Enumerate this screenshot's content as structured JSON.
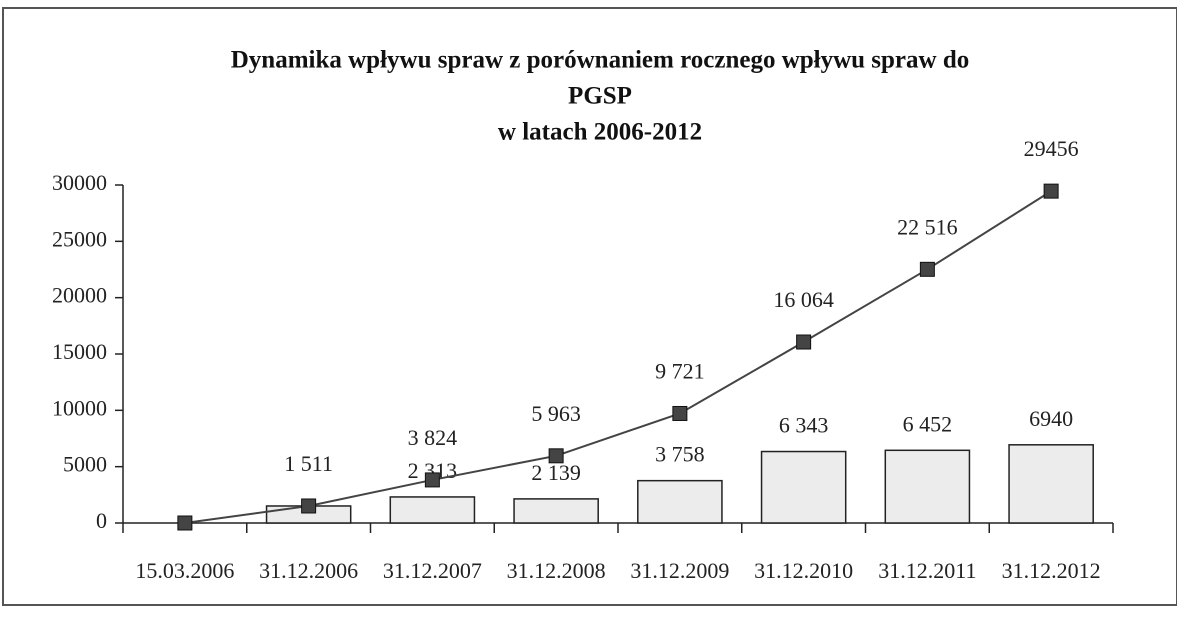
{
  "chart_data": {
    "type": "bar-line",
    "title": [
      "Dynamika wpływu spraw z porównaniem rocznego wpływu spraw do",
      "PGSP",
      "w latach 2006-2012"
    ],
    "categories": [
      "15.03.2006",
      "31.12.2006",
      "31.12.2007",
      "31.12.2008",
      "31.12.2009",
      "31.12.2010",
      "31.12.2011",
      "31.12.2012"
    ],
    "series": [
      {
        "type": "bar",
        "color": "#ececec",
        "values": [
          null,
          1511,
          2313,
          2139,
          3758,
          6343,
          6452,
          6940
        ],
        "value_labels": [
          null,
          null,
          "2 313",
          "2 139",
          "3 758",
          "6 343",
          "6 452",
          "6940"
        ]
      },
      {
        "type": "line",
        "color": "#444444",
        "values": [
          0,
          1511,
          3824,
          5963,
          9721,
          16064,
          22516,
          29456
        ],
        "value_labels": [
          null,
          "1 511",
          "3 824",
          "5 963",
          "9 721",
          "16 064",
          "22 516",
          "29456"
        ]
      }
    ],
    "ylim": [
      0,
      30000
    ],
    "yticks": [
      0,
      5000,
      10000,
      15000,
      20000,
      25000,
      30000
    ],
    "grid": false
  }
}
